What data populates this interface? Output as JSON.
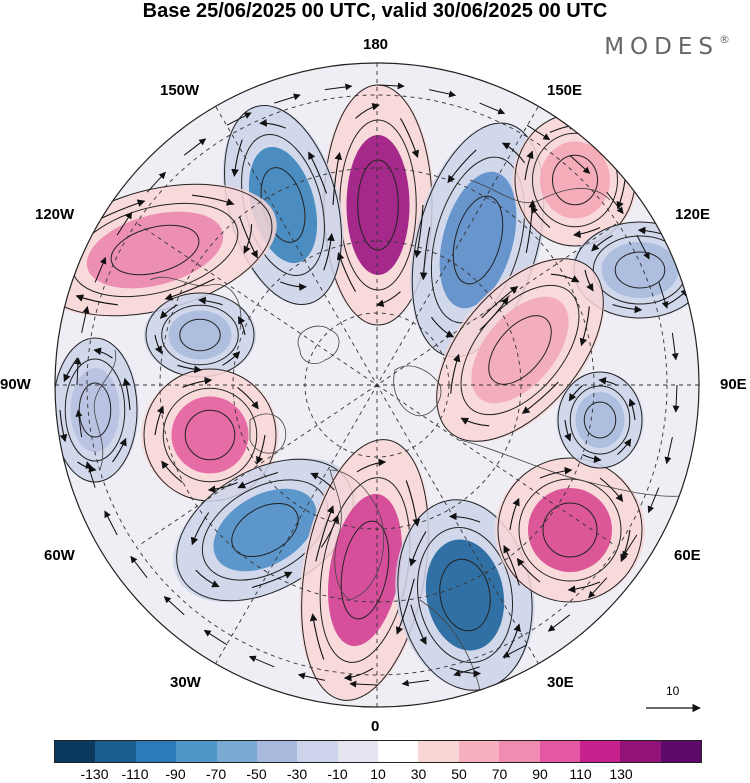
{
  "title": "Base 25/06/2025 00 UTC, valid 30/06/2025 00 UTC",
  "brand": {
    "name": "MODES",
    "mark": "®"
  },
  "longitude_labels": {
    "top": "180",
    "bottom": "0",
    "left": "90W",
    "right": "90E",
    "upper_left_1": "150W",
    "upper_left_2": "120W",
    "upper_right_1": "150E",
    "upper_right_2": "120E",
    "lower_left_1": "60W",
    "lower_left_2": "30W",
    "lower_right_1": "60E",
    "lower_right_2": "30E"
  },
  "reference_vector": {
    "label": "10"
  },
  "colorbar": {
    "colors": [
      "#0c3a5e",
      "#1a5d8f",
      "#2c7ab8",
      "#4f97c9",
      "#7aa9d4",
      "#a8bbde",
      "#ccd3ea",
      "#e6e3f0",
      "#ffffff",
      "#f9d6d6",
      "#f6b0bf",
      "#f08bb1",
      "#e657a3",
      "#c8208d",
      "#93137a",
      "#5e0a6b"
    ],
    "ticks": [
      "-130",
      "-110",
      "-90",
      "-70",
      "-50",
      "-30",
      "-10",
      "10",
      "30",
      "50",
      "70",
      "90",
      "110",
      "130"
    ]
  },
  "anomaly_centers": [
    {
      "id": "pos-180",
      "sign": "positive",
      "color": "#9a1581"
    },
    {
      "id": "neg-165W",
      "sign": "negative",
      "color": "#3c84bd"
    },
    {
      "id": "neg-150E",
      "sign": "negative",
      "color": "#5b8ec9"
    },
    {
      "id": "pos-150E",
      "sign": "positive",
      "color": "#f4a7b6"
    },
    {
      "id": "pos-120W",
      "sign": "positive",
      "color": "#ea86ae"
    },
    {
      "id": "neg-105E",
      "sign": "negative",
      "color": "#a8bbde"
    },
    {
      "id": "pos-105E",
      "sign": "positive",
      "color": "#f2a8b8"
    },
    {
      "id": "neg-100W",
      "sign": "negative",
      "color": "#a8bbde"
    },
    {
      "id": "pos-75W",
      "sign": "positive",
      "color": "#e35f9e"
    },
    {
      "id": "neg-90W",
      "sign": "negative",
      "color": "#b8c1e2"
    },
    {
      "id": "neg-45W",
      "sign": "negative",
      "color": "#4f8fc6"
    },
    {
      "id": "pos-10W",
      "sign": "positive",
      "color": "#d23f92"
    },
    {
      "id": "neg-20E",
      "sign": "negative",
      "color": "#1f659c"
    },
    {
      "id": "pos-55E",
      "sign": "positive",
      "color": "#d8488f"
    },
    {
      "id": "neg-80E",
      "sign": "negative",
      "color": "#a8bbde"
    }
  ]
}
